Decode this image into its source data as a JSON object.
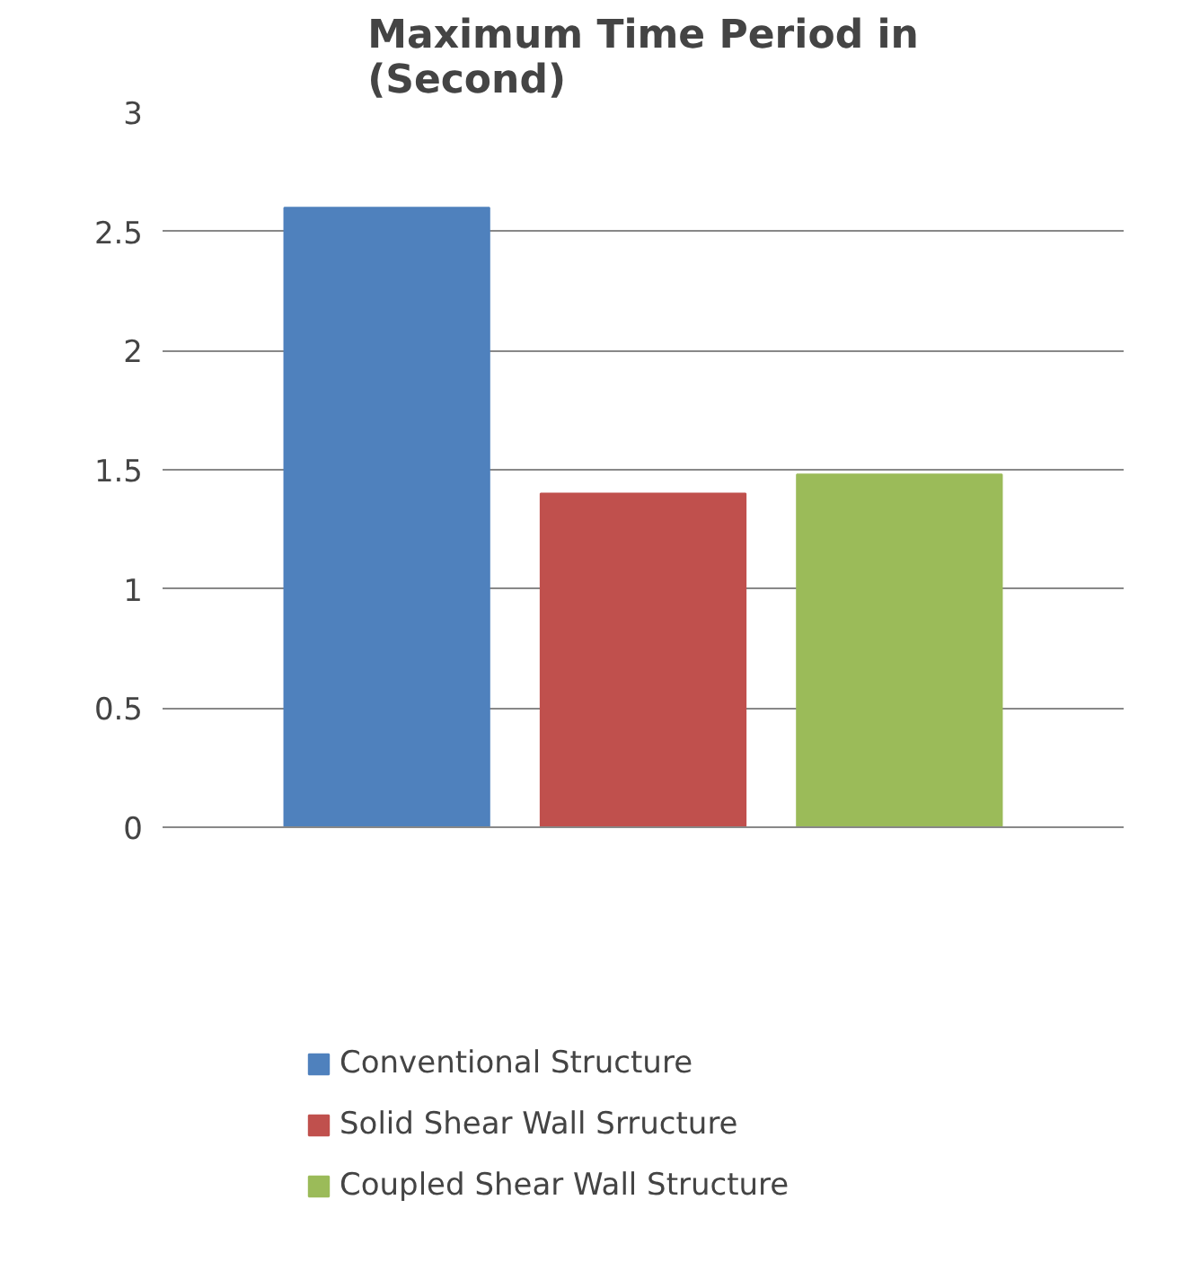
{
  "chart_data": {
    "type": "bar",
    "title": "Maximum Time Period in\n(Second)",
    "categories": [
      null
    ],
    "series": [
      {
        "name": "Conventional Structure",
        "color": "#4f81bd",
        "values": [
          2.6
        ]
      },
      {
        "name": "Solid Shear Wall Srructure",
        "color": "#c0504d",
        "values": [
          1.4
        ]
      },
      {
        "name": "Coupled Shear Wall Structure",
        "color": "#9bbb59",
        "values": [
          1.48
        ]
      }
    ],
    "ylim": [
      0,
      3
    ],
    "yticks": [
      0,
      0.5,
      1,
      1.5,
      2,
      2.5,
      3
    ],
    "grid": "y",
    "legend": "bottom"
  }
}
